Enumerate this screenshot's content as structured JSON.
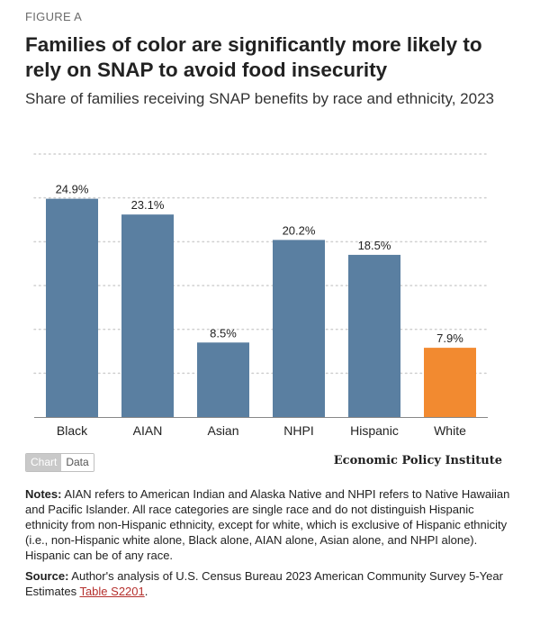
{
  "figure_label": "FIGURE A",
  "title": "Families of color are significantly more likely to rely on SNAP to avoid food insecurity",
  "subtitle": "Share of families receiving SNAP benefits by race and ethnicity, 2023",
  "toggle": {
    "chart_label": "Chart",
    "data_label": "Data"
  },
  "brand": "Economic Policy Institute",
  "notes": {
    "label": "Notes:",
    "text": " AIAN refers to American Indian and Alaska Native and NHPI refers to Native Hawaiian and Pacific Islander. All race categories are single race and do not distinguish Hispanic ethnicity from non-Hispanic ethnicity, except for white, which is exclusive of Hispanic ethnicity (i.e., non-Hispanic white alone, Black alone, AIAN alone, Asian alone, and NHPI alone). Hispanic can be of any race."
  },
  "source": {
    "label": "Source:",
    "text": " Author's analysis of U.S. Census Bureau 2023 American Community Survey 5-Year Estimates ",
    "link_text": "Table S2201",
    "end": "."
  },
  "colors": {
    "bar_default": "#5a7fa1",
    "bar_highlight": "#f28a30",
    "gridline": "#cfcfcf",
    "axis": "#888888"
  },
  "chart_data": {
    "type": "bar",
    "categories": [
      "Black",
      "AIAN",
      "Asian",
      "NHPI",
      "Hispanic",
      "White"
    ],
    "values": [
      24.9,
      23.1,
      8.5,
      20.2,
      18.5,
      7.9
    ],
    "data_labels": [
      "24.9%",
      "23.1%",
      "8.5%",
      "20.2%",
      "18.5%",
      "7.9%"
    ],
    "highlight_category": "White",
    "ylim": [
      0,
      30
    ],
    "grid_step": 5,
    "grid": true,
    "y_tick_labels_shown": false,
    "legend": "none"
  }
}
